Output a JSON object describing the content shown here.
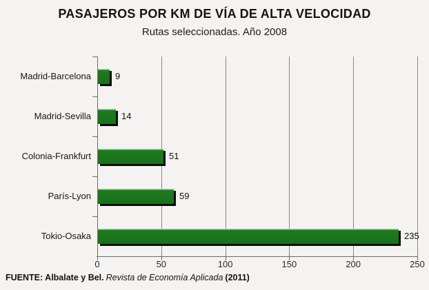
{
  "header": {
    "title": "PASAJEROS POR KM DE VÍA DE ALTA VELOCIDAD",
    "subtitle": "Rutas seleccionadas. Año 2008"
  },
  "footer": {
    "source_prefix": "FUENTE: Albalate y Bel.",
    "source_italic": "Revista de Economía Aplicada",
    "source_suffix": "(2011)"
  },
  "chart_data": {
    "type": "bar",
    "orientation": "horizontal",
    "title": "PASAJEROS POR KM DE VÍA DE ALTA VELOCIDAD",
    "subtitle": "Rutas seleccionadas. Año 2008",
    "categories": [
      "Madrid-Barcelona",
      "Madrid-Sevilla",
      "Colonia-Frankfurt",
      "París-Lyon",
      "Tokio-Osaka"
    ],
    "values": [
      9,
      14,
      51,
      59,
      235
    ],
    "data_labels": [
      9,
      14,
      51,
      59,
      235
    ],
    "xlabel": "",
    "ylabel": "",
    "xlim": [
      0,
      250
    ],
    "xticks": [
      0,
      50,
      100,
      150,
      200,
      250
    ],
    "grid": "vertical",
    "legend": "none",
    "bar_color": "#1e7b1e",
    "bar_shadow_color": "#0a0a0a",
    "background_color": "#f5f3f1",
    "gridline_color": "#8a8580",
    "source": "FUENTE: Albalate y Bel. Revista de Economía Aplicada (2011)"
  }
}
